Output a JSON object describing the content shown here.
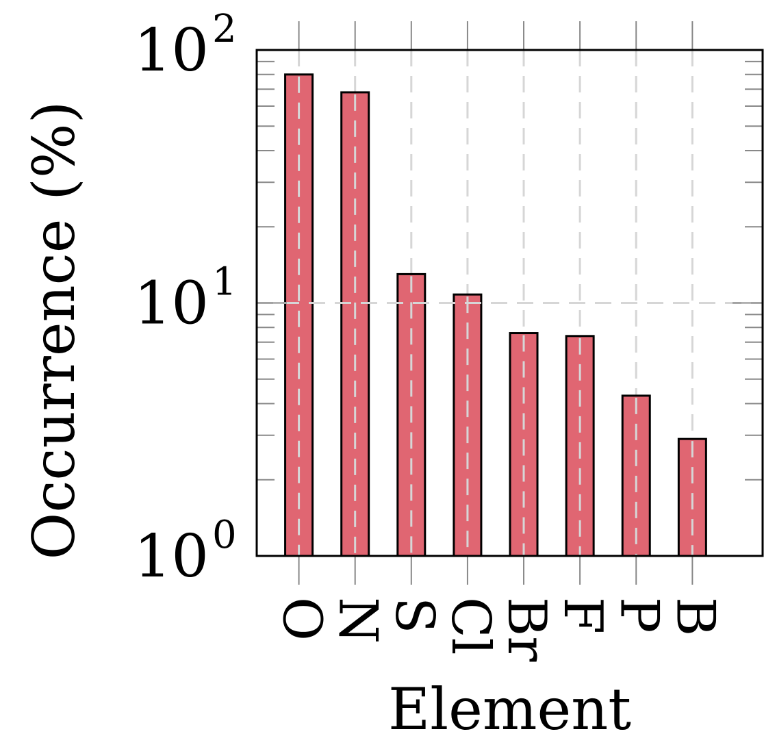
{
  "chart_data": {
    "type": "bar",
    "title": "",
    "xlabel": "Element",
    "ylabel": "Occurrence (%)",
    "yscale": "log",
    "ylim": [
      1,
      100
    ],
    "grid": true,
    "legend": "none",
    "categories": [
      "O",
      "N",
      "S",
      "Cl",
      "Br",
      "F",
      "P",
      "B"
    ],
    "values": [
      80,
      68,
      13,
      10.8,
      7.6,
      7.4,
      4.3,
      2.9
    ],
    "yticks": [
      {
        "base": "10",
        "exp": "0",
        "value": 1
      },
      {
        "base": "10",
        "exp": "1",
        "value": 10
      },
      {
        "base": "10",
        "exp": "2",
        "value": 100
      }
    ],
    "colors": {
      "bar_fill": "#e06672",
      "bar_stroke": "#000000",
      "grid": "#d6d6d6",
      "axis": "#000000"
    }
  }
}
